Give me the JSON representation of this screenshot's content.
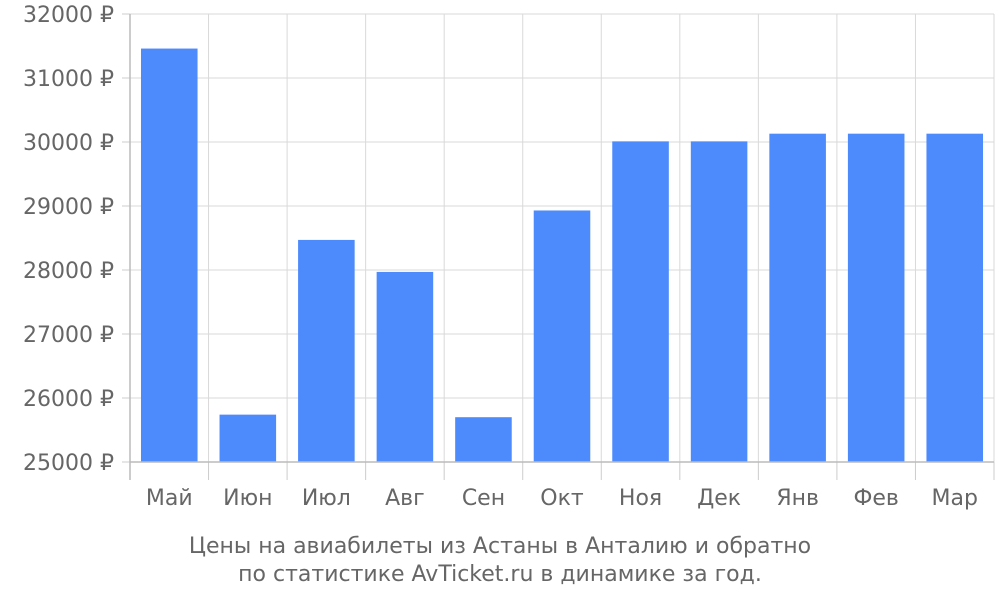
{
  "chart_data": {
    "type": "bar",
    "categories": [
      "Май",
      "Июн",
      "Июл",
      "Авг",
      "Сен",
      "Окт",
      "Ноя",
      "Дек",
      "Янв",
      "Фев",
      "Мар"
    ],
    "values": [
      31460,
      25740,
      28470,
      27970,
      25700,
      28930,
      30010,
      30010,
      30130,
      30130,
      30130
    ],
    "ylim": [
      25000,
      32000
    ],
    "yticks": [
      25000,
      26000,
      27000,
      28000,
      29000,
      30000,
      31000,
      32000
    ],
    "ytick_labels": [
      "25000 ₽",
      "26000 ₽",
      "27000 ₽",
      "28000 ₽",
      "29000 ₽",
      "30000 ₽",
      "31000 ₽",
      "32000 ₽"
    ],
    "grid": true,
    "bar_color": "#4d8afc",
    "caption_line1": "Цены на авиабилеты из Астаны в Анталию и обратно",
    "caption_line2": "по статистике AvTicket.ru в динамике за год."
  }
}
